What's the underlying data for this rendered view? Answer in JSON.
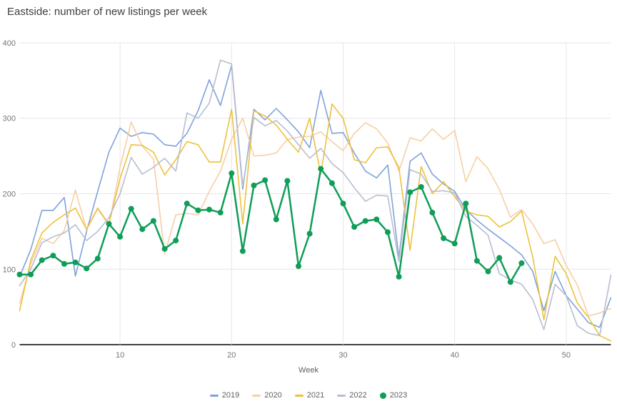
{
  "title": "Eastside: number of new listings per week",
  "axes": {
    "xlabel": "Week",
    "x_ticks": [
      10,
      20,
      30,
      40,
      50
    ],
    "y_ticks": [
      0,
      100,
      200,
      300,
      400
    ]
  },
  "colors": {
    "grid": "#e6e6e6",
    "zero_axis": "#424242",
    "tick_label": "#757575",
    "title_text": "#3c4043",
    "legend_text": "#616161",
    "s2019": "#7fa3da",
    "s2020": "#f7cfa6",
    "s2021": "#ecc23d",
    "s2022": "#b8bdd1",
    "s2023": "#0f9d58"
  },
  "chart_data": {
    "type": "line",
    "title": "Eastside: number of new listings per week",
    "xlabel": "Week",
    "ylabel": "",
    "xlim": [
      1,
      54
    ],
    "ylim": [
      0,
      400
    ],
    "grid": true,
    "legend_position": "bottom",
    "x_ticks": [
      10,
      20,
      30,
      40,
      50
    ],
    "y_ticks": [
      0,
      100,
      200,
      300,
      400
    ],
    "weeks_start": 1,
    "series": [
      {
        "name": "2019",
        "color": "#7fa3da",
        "style": "line",
        "values": [
          90,
          126,
          178,
          178,
          195,
          91,
          150,
          203,
          255,
          287,
          276,
          281,
          279,
          265,
          263,
          280,
          310,
          351,
          317,
          370,
          206,
          312,
          298,
          313,
          298,
          282,
          261,
          337,
          280,
          281,
          254,
          230,
          221,
          238,
          115,
          243,
          254,
          226,
          213,
          203,
          179,
          165,
          153,
          142,
          131,
          119,
          97,
          45,
          97,
          65,
          47,
          29,
          23,
          62
        ]
      },
      {
        "name": "2020",
        "color": "#f7cfa6",
        "style": "line",
        "values": [
          55,
          107,
          141,
          134,
          151,
          205,
          152,
          180,
          158,
          235,
          295,
          263,
          246,
          120,
          172,
          174,
          172,
          203,
          230,
          272,
          300,
          250,
          251,
          254,
          272,
          275,
          276,
          282,
          269,
          257,
          280,
          294,
          286,
          267,
          230,
          274,
          270,
          286,
          272,
          284,
          216,
          249,
          233,
          206,
          169,
          179,
          160,
          134,
          139,
          105,
          79,
          38,
          42,
          48
        ]
      },
      {
        "name": "2021",
        "color": "#ecc23d",
        "style": "line",
        "values": [
          45,
          112,
          148,
          162,
          172,
          181,
          153,
          181,
          160,
          220,
          265,
          264,
          255,
          225,
          245,
          269,
          265,
          242,
          242,
          312,
          160,
          310,
          303,
          291,
          272,
          255,
          300,
          226,
          319,
          300,
          245,
          241,
          261,
          262,
          235,
          125,
          236,
          200,
          216,
          196,
          177,
          172,
          170,
          156,
          163,
          177,
          116,
          33,
          117,
          94,
          55,
          36,
          12,
          5
        ]
      },
      {
        "name": "2022",
        "color": "#b8bdd1",
        "style": "line",
        "values": [
          78,
          100,
          135,
          143,
          148,
          159,
          138,
          150,
          168,
          200,
          248,
          226,
          235,
          247,
          230,
          307,
          300,
          320,
          377,
          372,
          210,
          301,
          290,
          297,
          283,
          265,
          247,
          260,
          240,
          228,
          208,
          190,
          198,
          197,
          110,
          232,
          226,
          203,
          204,
          201,
          170,
          158,
          145,
          94,
          86,
          80,
          60,
          20,
          80,
          65,
          25,
          15,
          12,
          92
        ]
      },
      {
        "name": "2023",
        "color": "#0f9d58",
        "style": "line+markers",
        "values": [
          93,
          93,
          112,
          118,
          107,
          109,
          101,
          114,
          160,
          143,
          180,
          153,
          164,
          127,
          138,
          187,
          178,
          179,
          175,
          227,
          124,
          211,
          218,
          166,
          217,
          104,
          147,
          233,
          214,
          187,
          156,
          164,
          166,
          149,
          90,
          202,
          209,
          175,
          141,
          134,
          187,
          111,
          97,
          115,
          83,
          108
        ]
      }
    ]
  }
}
